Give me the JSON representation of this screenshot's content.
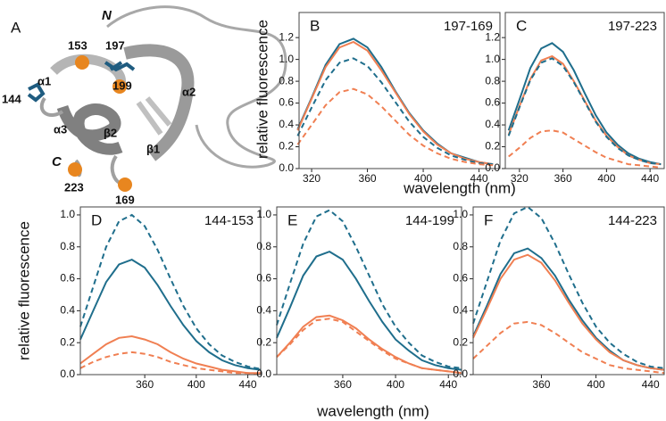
{
  "panel_a": {
    "label": "A",
    "n_term": "N",
    "c_term": "C",
    "residues": [
      "153",
      "197",
      "144",
      "199",
      "223",
      "169"
    ],
    "elements": [
      "α1",
      "α2",
      "α3",
      "β2",
      "β1"
    ]
  },
  "chart_data": [
    {
      "type": "line",
      "panel_label": "B",
      "title": "197-169",
      "ylabel": "relative fluorescence",
      "xlabel": "wavelength (nm)",
      "x": [
        310,
        320,
        330,
        340,
        350,
        360,
        370,
        380,
        390,
        400,
        410,
        420,
        430,
        440,
        450
      ],
      "xlim": [
        311,
        455
      ],
      "xticks": [
        320,
        360,
        400,
        440
      ],
      "ylim": [
        0,
        1.43
      ],
      "yticks": [
        {
          "value": 0,
          "label": "0.0"
        },
        0.2,
        0.4,
        0.6,
        0.8,
        {
          "value": 1,
          "label": "1.0"
        },
        1.2
      ],
      "series": [
        {
          "color": "#1f6e8c",
          "dash": false,
          "values": [
            0.36,
            0.65,
            0.95,
            1.14,
            1.19,
            1.11,
            0.93,
            0.71,
            0.51,
            0.35,
            0.23,
            0.14,
            0.1,
            0.06,
            0.04
          ]
        },
        {
          "color": "#f07f52",
          "dash": false,
          "values": [
            0.35,
            0.64,
            0.93,
            1.11,
            1.16,
            1.08,
            0.9,
            0.7,
            0.5,
            0.34,
            0.22,
            0.14,
            0.09,
            0.06,
            0.04
          ]
        },
        {
          "color": "#1f6e8c",
          "dash": true,
          "values": [
            0.3,
            0.56,
            0.81,
            0.97,
            1.01,
            0.94,
            0.79,
            0.61,
            0.43,
            0.29,
            0.19,
            0.12,
            0.08,
            0.05,
            0.04
          ]
        },
        {
          "color": "#f07f52",
          "dash": true,
          "values": [
            0.22,
            0.4,
            0.58,
            0.7,
            0.73,
            0.68,
            0.57,
            0.44,
            0.31,
            0.21,
            0.14,
            0.09,
            0.06,
            0.04,
            0.03
          ]
        }
      ]
    },
    {
      "type": "line",
      "panel_label": "C",
      "title": "197-223",
      "x": [
        310,
        320,
        330,
        340,
        350,
        360,
        370,
        380,
        390,
        400,
        410,
        420,
        430,
        440,
        450
      ],
      "xlim": [
        307,
        453
      ],
      "xticks": [
        320,
        360,
        400,
        440
      ],
      "ylim": [
        0,
        1.43
      ],
      "yticks": [
        {
          "value": 0,
          "label": "0.0"
        },
        0.2,
        0.4,
        0.6,
        0.8,
        {
          "value": 1,
          "label": "1.0"
        },
        1.2
      ],
      "series": [
        {
          "color": "#1f6e8c",
          "dash": false,
          "values": [
            0.35,
            0.63,
            0.92,
            1.1,
            1.15,
            1.07,
            0.9,
            0.69,
            0.49,
            0.33,
            0.22,
            0.14,
            0.09,
            0.06,
            0.04
          ]
        },
        {
          "color": "#f07f52",
          "dash": false,
          "values": [
            0.31,
            0.57,
            0.82,
            0.99,
            1.03,
            0.96,
            0.8,
            0.62,
            0.44,
            0.3,
            0.2,
            0.12,
            0.08,
            0.05,
            0.04
          ]
        },
        {
          "color": "#1f6e8c",
          "dash": true,
          "values": [
            0.3,
            0.56,
            0.81,
            0.97,
            1.01,
            0.94,
            0.79,
            0.61,
            0.43,
            0.29,
            0.19,
            0.12,
            0.08,
            0.05,
            0.04
          ]
        },
        {
          "color": "#f07f52",
          "dash": true,
          "values": [
            0.11,
            0.19,
            0.28,
            0.34,
            0.35,
            0.33,
            0.27,
            0.21,
            0.15,
            0.1,
            0.07,
            0.04,
            0.03,
            0.02,
            0.01
          ]
        }
      ]
    },
    {
      "type": "line",
      "panel_label": "D",
      "title": "144-153",
      "ylabel": "relative fluorescence",
      "x": [
        310,
        320,
        330,
        340,
        350,
        360,
        370,
        380,
        390,
        400,
        410,
        420,
        430,
        440,
        450
      ],
      "xlim": [
        310,
        450
      ],
      "xticks": [
        360,
        400,
        440
      ],
      "ylim": [
        0,
        1.05
      ],
      "yticks": [
        {
          "value": 0,
          "label": "0.0"
        },
        0.2,
        0.4,
        0.6,
        0.8,
        {
          "value": 1,
          "label": "1.0"
        }
      ],
      "series": [
        {
          "color": "#1f6e8c",
          "dash": false,
          "values": [
            0.22,
            0.4,
            0.58,
            0.69,
            0.72,
            0.67,
            0.56,
            0.43,
            0.31,
            0.21,
            0.14,
            0.09,
            0.06,
            0.04,
            0.03
          ]
        },
        {
          "color": "#f07f52",
          "dash": false,
          "values": [
            0.07,
            0.13,
            0.19,
            0.23,
            0.24,
            0.22,
            0.19,
            0.14,
            0.1,
            0.07,
            0.05,
            0.03,
            0.02,
            0.01,
            0.01
          ]
        },
        {
          "color": "#1f6e8c",
          "dash": true,
          "values": [
            0.3,
            0.55,
            0.8,
            0.96,
            1.0,
            0.93,
            0.78,
            0.6,
            0.43,
            0.29,
            0.19,
            0.12,
            0.08,
            0.05,
            0.035
          ]
        },
        {
          "color": "#f07f52",
          "dash": true,
          "values": [
            0.04,
            0.08,
            0.11,
            0.13,
            0.14,
            0.13,
            0.11,
            0.08,
            0.06,
            0.04,
            0.03,
            0.02,
            0.01,
            0.01,
            0.0
          ]
        }
      ]
    },
    {
      "type": "line",
      "panel_label": "E",
      "title": "144-199",
      "xlabel": "wavelength (nm)",
      "x": [
        310,
        320,
        330,
        340,
        350,
        360,
        370,
        380,
        390,
        400,
        410,
        420,
        430,
        440,
        450
      ],
      "xlim": [
        310,
        450
      ],
      "xticks": [
        360,
        400,
        440
      ],
      "ylim": [
        0,
        1.05
      ],
      "yticks": [
        {
          "value": 0,
          "label": "0.0"
        },
        0.2,
        0.4,
        0.6,
        0.8,
        {
          "value": 1,
          "label": "1.0"
        }
      ],
      "series": [
        {
          "color": "#1f6e8c",
          "dash": false,
          "values": [
            0.23,
            0.42,
            0.62,
            0.74,
            0.77,
            0.72,
            0.6,
            0.46,
            0.33,
            0.22,
            0.15,
            0.09,
            0.06,
            0.04,
            0.03
          ]
        },
        {
          "color": "#f07f52",
          "dash": false,
          "values": [
            0.11,
            0.2,
            0.3,
            0.36,
            0.37,
            0.34,
            0.29,
            0.22,
            0.16,
            0.11,
            0.07,
            0.04,
            0.03,
            0.02,
            0.01
          ]
        },
        {
          "color": "#1f6e8c",
          "dash": true,
          "values": [
            0.31,
            0.57,
            0.82,
            0.99,
            1.03,
            0.96,
            0.8,
            0.62,
            0.44,
            0.3,
            0.2,
            0.12,
            0.08,
            0.05,
            0.04
          ]
        },
        {
          "color": "#f07f52",
          "dash": true,
          "values": [
            0.11,
            0.19,
            0.28,
            0.34,
            0.35,
            0.33,
            0.27,
            0.21,
            0.15,
            0.1,
            0.07,
            0.04,
            0.03,
            0.02,
            0.01
          ]
        }
      ]
    },
    {
      "type": "line",
      "panel_label": "F",
      "title": "144-223",
      "x": [
        310,
        320,
        330,
        340,
        350,
        360,
        370,
        380,
        390,
        400,
        410,
        420,
        430,
        440,
        450
      ],
      "xlim": [
        310,
        450
      ],
      "xticks": [
        360,
        400,
        440
      ],
      "ylim": [
        0,
        1.05
      ],
      "yticks": [
        {
          "value": 0,
          "label": "0.0"
        },
        0.2,
        0.4,
        0.6,
        0.8,
        {
          "value": 1,
          "label": "1.0"
        }
      ],
      "series": [
        {
          "color": "#1f6e8c",
          "dash": false,
          "values": [
            0.24,
            0.43,
            0.63,
            0.76,
            0.79,
            0.73,
            0.62,
            0.47,
            0.34,
            0.23,
            0.15,
            0.09,
            0.06,
            0.04,
            0.03
          ]
        },
        {
          "color": "#f07f52",
          "dash": false,
          "values": [
            0.23,
            0.41,
            0.6,
            0.72,
            0.75,
            0.7,
            0.59,
            0.45,
            0.32,
            0.22,
            0.14,
            0.09,
            0.06,
            0.04,
            0.03
          ]
        },
        {
          "color": "#1f6e8c",
          "dash": true,
          "values": [
            0.32,
            0.58,
            0.84,
            1.01,
            1.05,
            0.98,
            0.82,
            0.63,
            0.45,
            0.3,
            0.2,
            0.13,
            0.08,
            0.05,
            0.04
          ]
        },
        {
          "color": "#f07f52",
          "dash": true,
          "values": [
            0.1,
            0.18,
            0.26,
            0.32,
            0.33,
            0.31,
            0.26,
            0.2,
            0.14,
            0.1,
            0.06,
            0.04,
            0.03,
            0.02,
            0.01
          ]
        }
      ]
    }
  ]
}
